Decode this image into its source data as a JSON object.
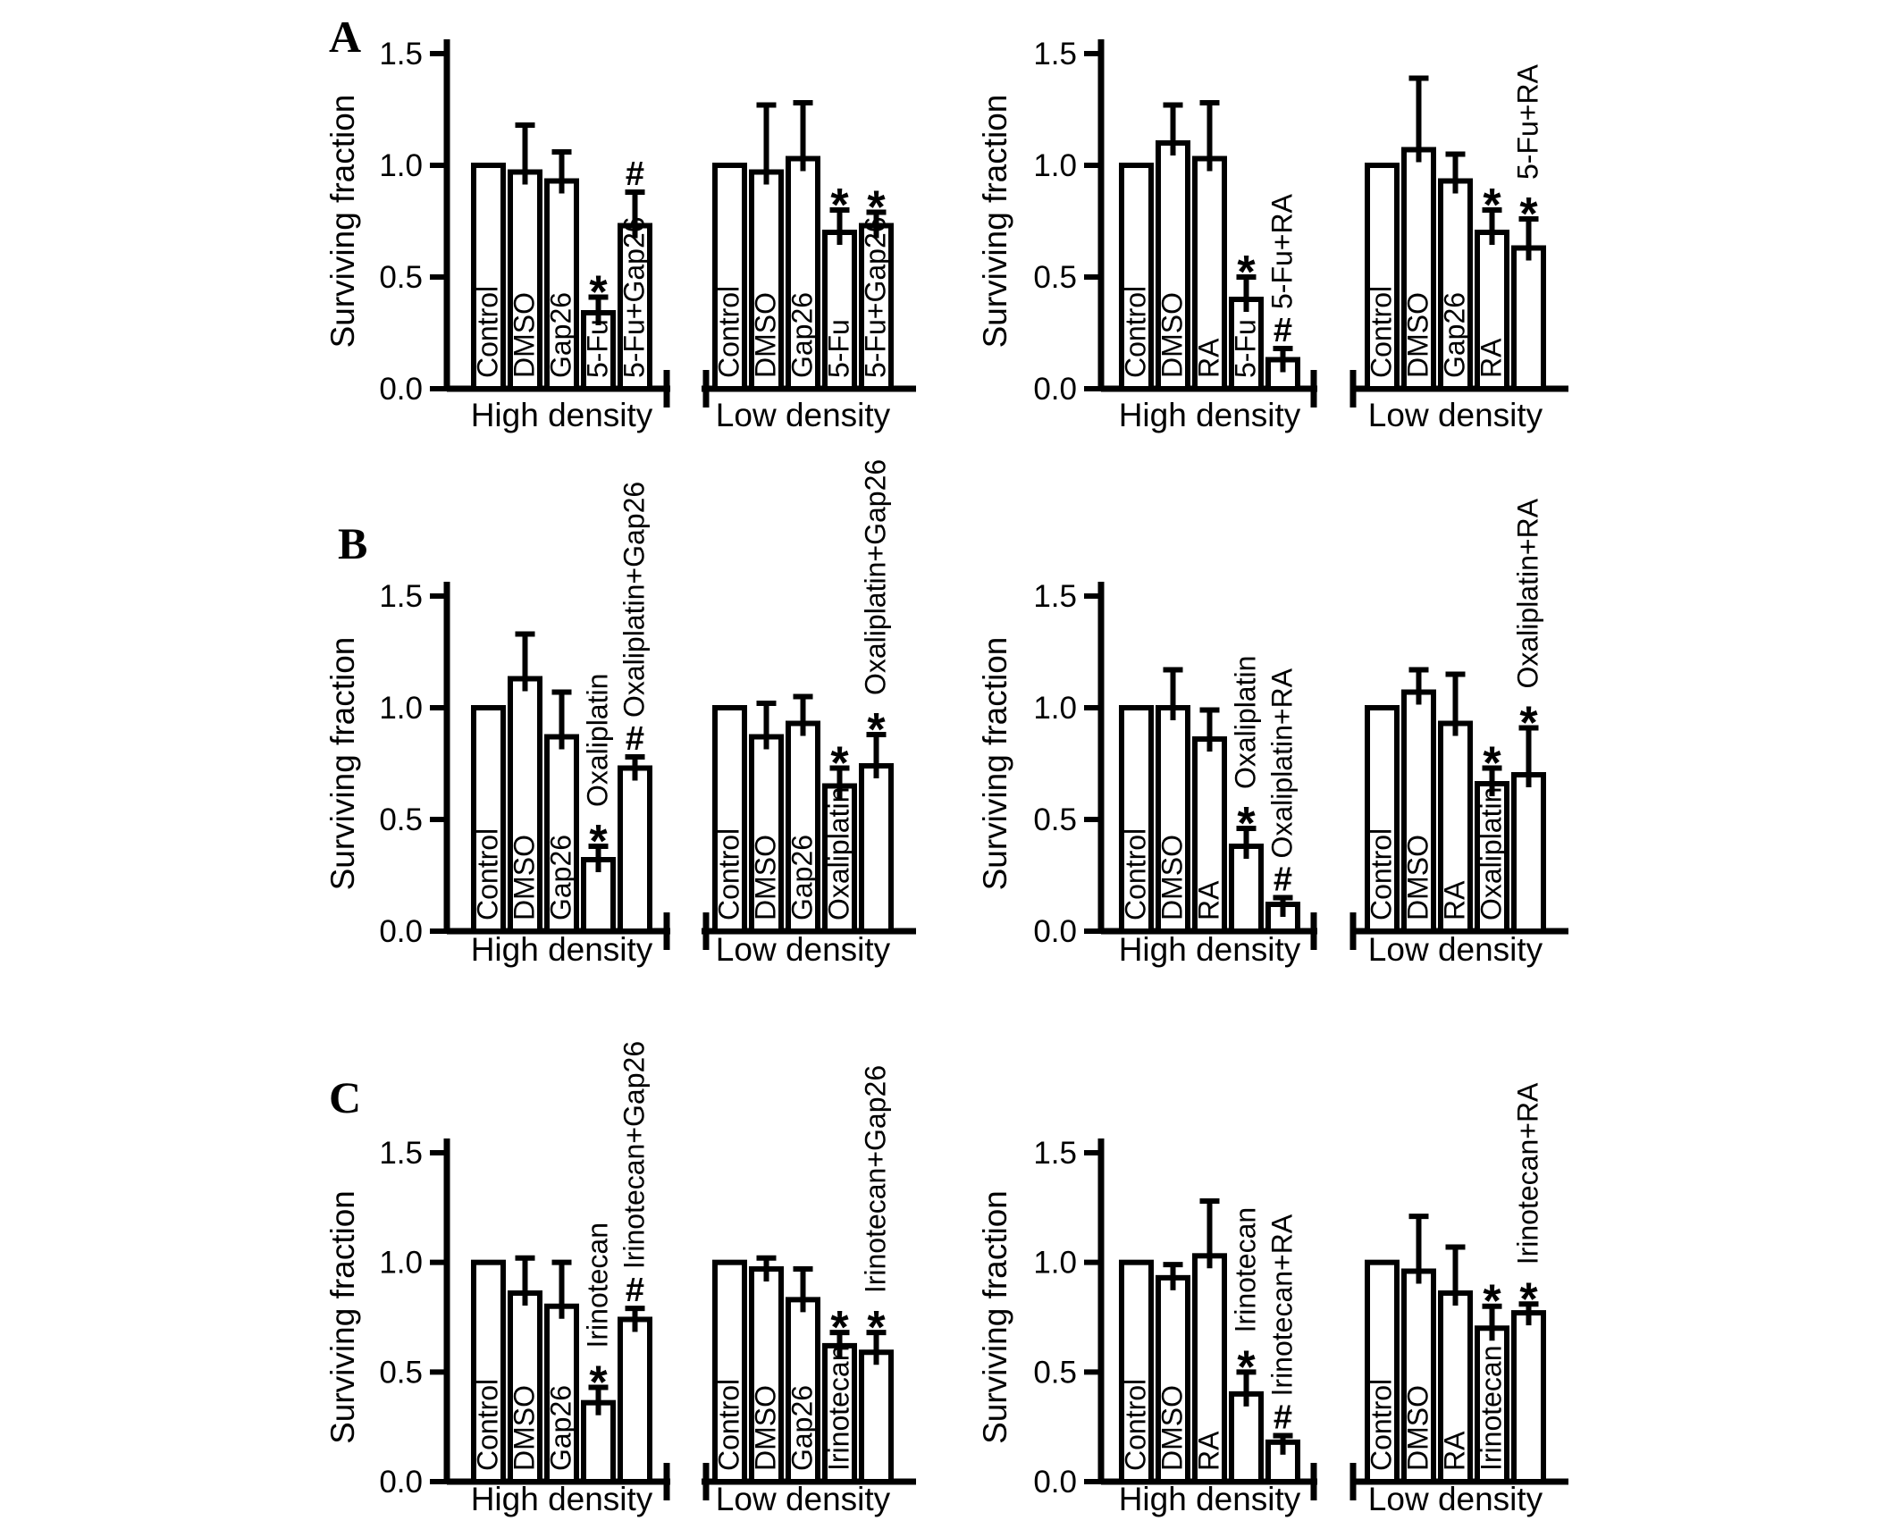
{
  "figure": {
    "background": "#ffffff",
    "ink_color": "#000000",
    "panels": [
      {
        "label": "A"
      },
      {
        "label": "B"
      },
      {
        "label": "C"
      }
    ]
  },
  "chart_data": [
    {
      "type": "bar",
      "panel": "A",
      "position": "left",
      "title": "",
      "ylabel": "Surviving fraction",
      "xlabel": "",
      "ylim": [
        0,
        1.5
      ],
      "yticks": [
        "0.0",
        "0.5",
        "1.0",
        "1.5"
      ],
      "grid": false,
      "legend": "none",
      "bar_fill": "#ffffff",
      "bar_stroke": "#000000",
      "groups": [
        {
          "label": "High density",
          "bars": [
            {
              "label": "Control",
              "value": 1.0,
              "err": 0,
              "sig": "",
              "label_pos": "inside"
            },
            {
              "label": "DMSO",
              "value": 0.97,
              "err": 0.21,
              "sig": "",
              "label_pos": "inside"
            },
            {
              "label": "Gap26",
              "value": 0.93,
              "err": 0.13,
              "sig": "",
              "label_pos": "inside"
            },
            {
              "label": "5-Fu",
              "value": 0.34,
              "err": 0.07,
              "sig": "*",
              "label_pos": "inside"
            },
            {
              "label": "5-Fu+Gap26",
              "value": 0.73,
              "err": 0.15,
              "sig": "#",
              "label_pos": "inside"
            }
          ]
        },
        {
          "label": "Low density",
          "bars": [
            {
              "label": "Control",
              "value": 1.0,
              "err": 0,
              "sig": "",
              "label_pos": "inside"
            },
            {
              "label": "DMSO",
              "value": 0.97,
              "err": 0.3,
              "sig": "",
              "label_pos": "inside"
            },
            {
              "label": "Gap26",
              "value": 1.03,
              "err": 0.25,
              "sig": "",
              "label_pos": "inside"
            },
            {
              "label": "5-Fu",
              "value": 0.7,
              "err": 0.1,
              "sig": "*",
              "label_pos": "inside"
            },
            {
              "label": "5-Fu+Gap26",
              "value": 0.73,
              "err": 0.06,
              "sig": "*",
              "label_pos": "inside"
            }
          ]
        }
      ]
    },
    {
      "type": "bar",
      "panel": "A",
      "position": "right",
      "title": "",
      "ylabel": "Surviving fraction",
      "xlabel": "",
      "ylim": [
        0,
        1.5
      ],
      "yticks": [
        "0.0",
        "0.5",
        "1.0",
        "1.5"
      ],
      "grid": false,
      "legend": "none",
      "bar_fill": "#ffffff",
      "bar_stroke": "#000000",
      "groups": [
        {
          "label": "High density",
          "bars": [
            {
              "label": "Control",
              "value": 1.0,
              "err": 0,
              "sig": "",
              "label_pos": "inside"
            },
            {
              "label": "DMSO",
              "value": 1.1,
              "err": 0.17,
              "sig": "",
              "label_pos": "inside"
            },
            {
              "label": "RA",
              "value": 1.03,
              "err": 0.25,
              "sig": "",
              "label_pos": "inside"
            },
            {
              "label": "5-Fu",
              "value": 0.4,
              "err": 0.1,
              "sig": "*",
              "label_pos": "inside"
            },
            {
              "label": "5-Fu+RA",
              "value": 0.13,
              "err": 0.05,
              "sig": "#",
              "label_pos": "above"
            }
          ]
        },
        {
          "label": "Low density",
          "bars": [
            {
              "label": "Control",
              "value": 1.0,
              "err": 0,
              "sig": "",
              "label_pos": "inside"
            },
            {
              "label": "DMSO",
              "value": 1.07,
              "err": 0.32,
              "sig": "",
              "label_pos": "inside"
            },
            {
              "label": "Gap26",
              "value": 0.93,
              "err": 0.12,
              "sig": "",
              "label_pos": "inside"
            },
            {
              "label": "RA",
              "value": 0.7,
              "err": 0.1,
              "sig": "*",
              "label_pos": "inside"
            },
            {
              "label": "5-Fu+RA",
              "value": 0.63,
              "err": 0.13,
              "sig": "*",
              "label_pos": "above"
            }
          ]
        }
      ]
    },
    {
      "type": "bar",
      "panel": "B",
      "position": "left",
      "title": "",
      "ylabel": "Surviving fraction",
      "xlabel": "",
      "ylim": [
        0,
        1.5
      ],
      "yticks": [
        "0.0",
        "0.5",
        "1.0",
        "1.5"
      ],
      "grid": false,
      "legend": "none",
      "bar_fill": "#ffffff",
      "bar_stroke": "#000000",
      "groups": [
        {
          "label": "High density",
          "bars": [
            {
              "label": "Control",
              "value": 1.0,
              "err": 0,
              "sig": "",
              "label_pos": "inside"
            },
            {
              "label": "DMSO",
              "value": 1.13,
              "err": 0.2,
              "sig": "",
              "label_pos": "inside"
            },
            {
              "label": "Gap26",
              "value": 0.87,
              "err": 0.2,
              "sig": "",
              "label_pos": "inside"
            },
            {
              "label": "Oxaliplatin",
              "value": 0.32,
              "err": 0.06,
              "sig": "*",
              "label_pos": "above"
            },
            {
              "label": "Oxaliplatin+Gap26",
              "value": 0.73,
              "err": 0.05,
              "sig": "#",
              "label_pos": "above"
            }
          ]
        },
        {
          "label": "Low density",
          "bars": [
            {
              "label": "Control",
              "value": 1.0,
              "err": 0,
              "sig": "",
              "label_pos": "inside"
            },
            {
              "label": "DMSO",
              "value": 0.87,
              "err": 0.15,
              "sig": "",
              "label_pos": "inside"
            },
            {
              "label": "Gap26",
              "value": 0.93,
              "err": 0.12,
              "sig": "",
              "label_pos": "inside"
            },
            {
              "label": "Oxaliplatin",
              "value": 0.65,
              "err": 0.08,
              "sig": "*",
              "label_pos": "inside"
            },
            {
              "label": "Oxaliplatin+Gap26",
              "value": 0.74,
              "err": 0.14,
              "sig": "*",
              "label_pos": "above"
            }
          ]
        }
      ]
    },
    {
      "type": "bar",
      "panel": "B",
      "position": "right",
      "title": "",
      "ylabel": "Surviving fraction",
      "xlabel": "",
      "ylim": [
        0,
        1.5
      ],
      "yticks": [
        "0.0",
        "0.5",
        "1.0",
        "1.5"
      ],
      "grid": false,
      "legend": "none",
      "bar_fill": "#ffffff",
      "bar_stroke": "#000000",
      "groups": [
        {
          "label": "High density",
          "bars": [
            {
              "label": "Control",
              "value": 1.0,
              "err": 0,
              "sig": "",
              "label_pos": "inside"
            },
            {
              "label": "DMSO",
              "value": 1.0,
              "err": 0.17,
              "sig": "",
              "label_pos": "inside"
            },
            {
              "label": "RA",
              "value": 0.86,
              "err": 0.13,
              "sig": "",
              "label_pos": "inside"
            },
            {
              "label": "Oxaliplatin",
              "value": 0.38,
              "err": 0.08,
              "sig": "*",
              "label_pos": "above"
            },
            {
              "label": "Oxaliplatin+RA",
              "value": 0.12,
              "err": 0.03,
              "sig": "#",
              "label_pos": "above"
            }
          ]
        },
        {
          "label": "Low density",
          "bars": [
            {
              "label": "Control",
              "value": 1.0,
              "err": 0,
              "sig": "",
              "label_pos": "inside"
            },
            {
              "label": "DMSO",
              "value": 1.07,
              "err": 0.1,
              "sig": "",
              "label_pos": "inside"
            },
            {
              "label": "RA",
              "value": 0.93,
              "err": 0.22,
              "sig": "",
              "label_pos": "inside"
            },
            {
              "label": "Oxaliplatin",
              "value": 0.66,
              "err": 0.07,
              "sig": "*",
              "label_pos": "inside"
            },
            {
              "label": "Oxaliplatin+RA",
              "value": 0.7,
              "err": 0.21,
              "sig": "*",
              "label_pos": "above"
            }
          ]
        }
      ]
    },
    {
      "type": "bar",
      "panel": "C",
      "position": "left",
      "title": "",
      "ylabel": "Surviving fraction",
      "xlabel": "",
      "ylim": [
        0,
        1.5
      ],
      "yticks": [
        "0.0",
        "0.5",
        "1.0",
        "1.5"
      ],
      "grid": false,
      "legend": "none",
      "bar_fill": "#ffffff",
      "bar_stroke": "#000000",
      "groups": [
        {
          "label": "High density",
          "bars": [
            {
              "label": "Control",
              "value": 1.0,
              "err": 0,
              "sig": "",
              "label_pos": "inside"
            },
            {
              "label": "DMSO",
              "value": 0.86,
              "err": 0.16,
              "sig": "",
              "label_pos": "inside"
            },
            {
              "label": "Gap26",
              "value": 0.8,
              "err": 0.2,
              "sig": "",
              "label_pos": "inside"
            },
            {
              "label": "Irinotecan",
              "value": 0.36,
              "err": 0.07,
              "sig": "*",
              "label_pos": "above"
            },
            {
              "label": "Irinotecan+Gap26",
              "value": 0.74,
              "err": 0.05,
              "sig": "#",
              "label_pos": "above"
            }
          ]
        },
        {
          "label": "Low density",
          "bars": [
            {
              "label": "Control",
              "value": 1.0,
              "err": 0,
              "sig": "",
              "label_pos": "inside"
            },
            {
              "label": "DMSO",
              "value": 0.97,
              "err": 0.05,
              "sig": "",
              "label_pos": "inside"
            },
            {
              "label": "Gap26",
              "value": 0.83,
              "err": 0.14,
              "sig": "",
              "label_pos": "inside"
            },
            {
              "label": "Irinotecan",
              "value": 0.62,
              "err": 0.06,
              "sig": "*",
              "label_pos": "inside"
            },
            {
              "label": "Irinotecan+Gap26",
              "value": 0.59,
              "err": 0.09,
              "sig": "*",
              "label_pos": "above"
            }
          ]
        }
      ]
    },
    {
      "type": "bar",
      "panel": "C",
      "position": "right",
      "title": "",
      "ylabel": "Surviving fraction",
      "xlabel": "",
      "ylim": [
        0,
        1.5
      ],
      "yticks": [
        "0.0",
        "0.5",
        "1.0",
        "1.5"
      ],
      "grid": false,
      "legend": "none",
      "bar_fill": "#ffffff",
      "bar_stroke": "#000000",
      "groups": [
        {
          "label": "High density",
          "bars": [
            {
              "label": "Control",
              "value": 1.0,
              "err": 0,
              "sig": "",
              "label_pos": "inside"
            },
            {
              "label": "DMSO",
              "value": 0.93,
              "err": 0.06,
              "sig": "",
              "label_pos": "inside"
            },
            {
              "label": "RA",
              "value": 1.03,
              "err": 0.25,
              "sig": "",
              "label_pos": "inside"
            },
            {
              "label": "Irinotecan",
              "value": 0.4,
              "err": 0.1,
              "sig": "*",
              "label_pos": "above"
            },
            {
              "label": "Irinotecan+RA",
              "value": 0.18,
              "err": 0.03,
              "sig": "#",
              "label_pos": "above"
            }
          ]
        },
        {
          "label": "Low density",
          "bars": [
            {
              "label": "Control",
              "value": 1.0,
              "err": 0,
              "sig": "",
              "label_pos": "inside"
            },
            {
              "label": "DMSO",
              "value": 0.96,
              "err": 0.25,
              "sig": "",
              "label_pos": "inside"
            },
            {
              "label": "RA",
              "value": 0.86,
              "err": 0.21,
              "sig": "",
              "label_pos": "inside"
            },
            {
              "label": "Irinotecan",
              "value": 0.7,
              "err": 0.1,
              "sig": "*",
              "label_pos": "inside"
            },
            {
              "label": "Irinotecan+RA",
              "value": 0.77,
              "err": 0.04,
              "sig": "*",
              "label_pos": "above"
            }
          ]
        }
      ]
    }
  ]
}
